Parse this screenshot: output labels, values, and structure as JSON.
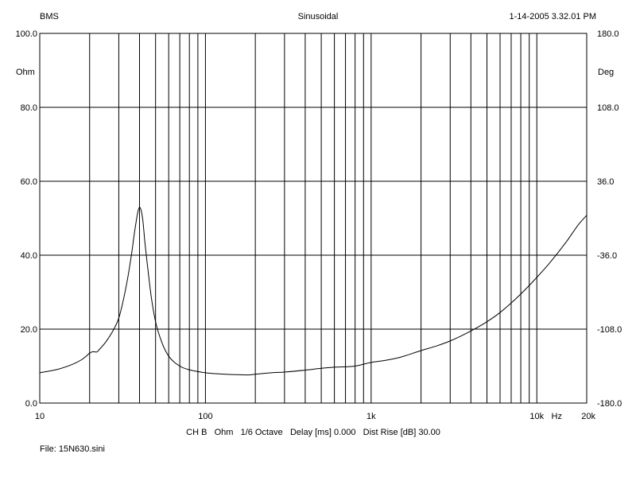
{
  "header": {
    "brand": "BMS",
    "mode": "Sinusoidal",
    "timestamp": "1-14-2005 3.32.01 PM"
  },
  "footer": {
    "channel_info": "CH B   Ohm   1/6 Octave   Delay [ms] 0.000   Dist Rise [dB] 30.00",
    "file": "File: 15N630.sini"
  },
  "chart_data": {
    "type": "line",
    "xscale": "log",
    "xlim": [
      10,
      20000
    ],
    "ylim": [
      0,
      100
    ],
    "y2lim": [
      -180,
      180
    ],
    "grid": true,
    "ylabel": "Ohm",
    "y2label": "Deg",
    "xunit": "Hz",
    "x_ticks": [
      {
        "v": 10,
        "label": "10"
      },
      {
        "v": 100,
        "label": "100"
      },
      {
        "v": 1000,
        "label": "1k"
      },
      {
        "v": 10000,
        "label": "10k"
      },
      {
        "v": 20000,
        "label": "20k"
      }
    ],
    "y_ticks": [
      "0.0",
      "20.0",
      "40.0",
      "60.0",
      "80.0",
      "100.0"
    ],
    "y2_ticks": [
      "-180.0",
      "-108.0",
      "-36.0",
      "36.0",
      "108.0",
      "180.0"
    ],
    "series": [
      {
        "color": "#000000",
        "x": [
          10,
          13,
          16,
          18,
          19,
          20,
          21,
          22,
          23,
          25,
          28,
          30,
          32,
          34,
          36,
          37,
          38,
          39,
          40,
          41,
          42,
          43,
          45,
          47,
          50,
          55,
          60,
          70,
          80,
          100,
          120,
          150,
          180,
          200,
          250,
          300,
          400,
          500,
          600,
          800,
          1000,
          1200,
          1500,
          2000,
          2500,
          3000,
          4000,
          5000,
          6000,
          8000,
          10000,
          12000,
          15000,
          18000,
          20000
        ],
        "y": [
          8.2,
          9.2,
          10.6,
          11.8,
          12.6,
          13.5,
          13.9,
          13.8,
          14.6,
          16.5,
          20.0,
          23.0,
          28.0,
          34.0,
          41.0,
          45.0,
          48.5,
          51.5,
          53.0,
          52.0,
          49.0,
          44.0,
          36.0,
          29.0,
          22.0,
          16.0,
          12.7,
          10.0,
          9.0,
          8.2,
          7.9,
          7.7,
          7.6,
          7.8,
          8.2,
          8.4,
          8.9,
          9.4,
          9.7,
          10.0,
          11.0,
          11.5,
          12.4,
          14.2,
          15.5,
          16.8,
          19.5,
          22.0,
          24.5,
          29.5,
          34.0,
          38.0,
          43.5,
          48.5,
          50.8
        ]
      }
    ]
  }
}
